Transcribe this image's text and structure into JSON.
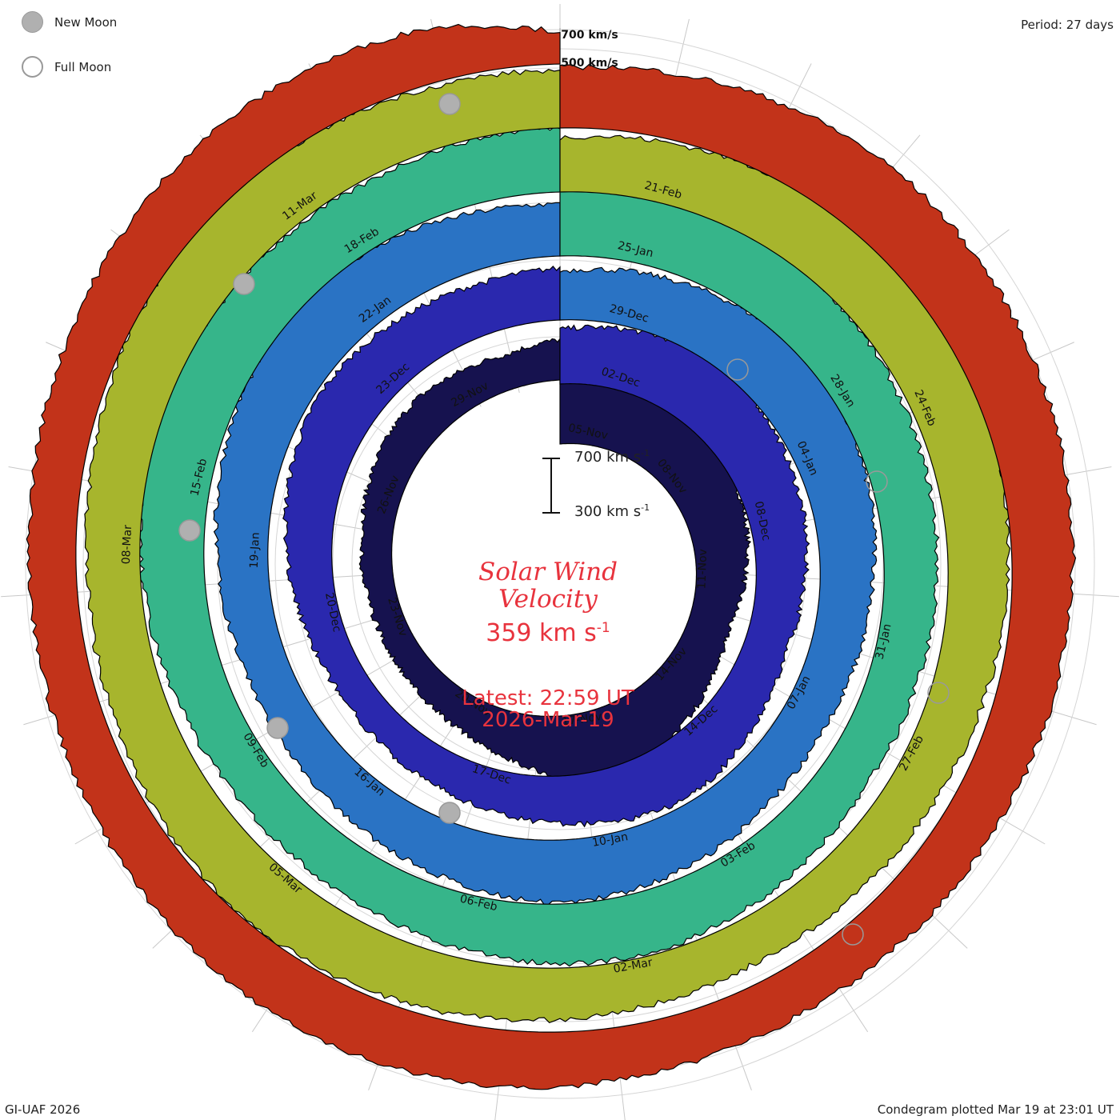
{
  "legend": {
    "new_moon_label": "New Moon",
    "full_moon_label": "Full Moon",
    "new_moon_color": "#b0b0b0",
    "full_moon_color": "#ffffff"
  },
  "period_label": "Period: 27 days",
  "credit": "GI-UAF 2026",
  "plotted": "Condegram plotted Mar 19 at 23:01 UT",
  "center": {
    "title_line1": "Solar Wind",
    "title_line2": "Velocity",
    "value": "359 km s",
    "value_exp": "-1",
    "latest_line1": "Latest: 22:59 UT",
    "latest_line2": "2026-Mar-19",
    "accent_color": "#e8333d"
  },
  "scale_bar": {
    "upper": "700 km s",
    "lower": "300 km s",
    "exp": "-1"
  },
  "chart_data": {
    "type": "condegram (spiral area)",
    "title": "Solar Wind Velocity",
    "period_days": 27,
    "ring_reference_labels": [
      "700 km/s",
      "500 km/s"
    ],
    "units": "km s-1",
    "latest_value": 359,
    "rings": [
      {
        "color": "#16124f",
        "date_labels": [
          "05-Nov",
          "08-Nov",
          "11-Nov",
          "14-Nov",
          "17-Nov",
          "20-Nov",
          "23-Nov",
          "26-Nov",
          "29-Nov"
        ],
        "speed_profile_kms": [
          640,
          660,
          690,
          650,
          600,
          560,
          520,
          470,
          420,
          460,
          520,
          590,
          640,
          560,
          470,
          400,
          360,
          340,
          330,
          340,
          350,
          380,
          410,
          430,
          400,
          380,
          420
        ]
      },
      {
        "color": "#2a28ae",
        "date_labels": [
          "02-Dec",
          "08-Dec",
          "14-Dec",
          "17-Dec",
          "20-Dec",
          "23-Dec"
        ],
        "speed_profile_kms": [
          520,
          560,
          600,
          620,
          580,
          540,
          510,
          470,
          440,
          460,
          520,
          560,
          520,
          470,
          430,
          400,
          380,
          360,
          380,
          420,
          470,
          520,
          560,
          540,
          510,
          490,
          500
        ]
      },
      {
        "color": "#2a73c4",
        "date_labels": [
          "29-Dec",
          "04-Jan",
          "07-Jan",
          "10-Jan",
          "16-Jan",
          "19-Jan",
          "22-Jan"
        ],
        "speed_profile_kms": [
          480,
          520,
          560,
          600,
          620,
          580,
          540,
          500,
          470,
          450,
          480,
          520,
          560,
          580,
          540,
          500,
          470,
          450,
          440,
          470,
          510,
          560,
          600,
          620,
          580,
          530,
          500
        ]
      },
      {
        "color": "#36b58a",
        "date_labels": [
          "25-Jan",
          "28-Jan",
          "31-Jan",
          "03-Feb",
          "06-Feb",
          "09-Feb",
          "15-Feb",
          "18-Feb"
        ],
        "speed_profile_kms": [
          600,
          620,
          640,
          610,
          570,
          540,
          520,
          500,
          480,
          470,
          500,
          540,
          570,
          560,
          520,
          490,
          470,
          480,
          510,
          560,
          600,
          620,
          600,
          580,
          560,
          580,
          590
        ]
      },
      {
        "color": "#a7b52d",
        "date_labels": [
          "21-Feb",
          "24-Feb",
          "27-Feb",
          "02-Mar",
          "05-Mar",
          "08-Mar",
          "11-Mar"
        ],
        "speed_profile_kms": [
          520,
          560,
          600,
          640,
          660,
          620,
          580,
          540,
          510,
          480,
          460,
          450,
          470,
          500,
          530,
          560,
          580,
          560,
          530,
          510,
          520,
          560,
          600,
          620,
          590,
          560,
          540
        ]
      },
      {
        "color": "#c2331a",
        "date_labels": [],
        "speed_profile_kms": [
          560,
          600,
          640,
          660,
          640,
          610,
          580,
          550,
          520,
          500,
          480,
          470,
          490,
          520,
          550,
          560,
          540,
          510,
          480,
          460,
          470,
          500,
          540,
          570,
          560,
          520,
          359
        ]
      }
    ]
  }
}
